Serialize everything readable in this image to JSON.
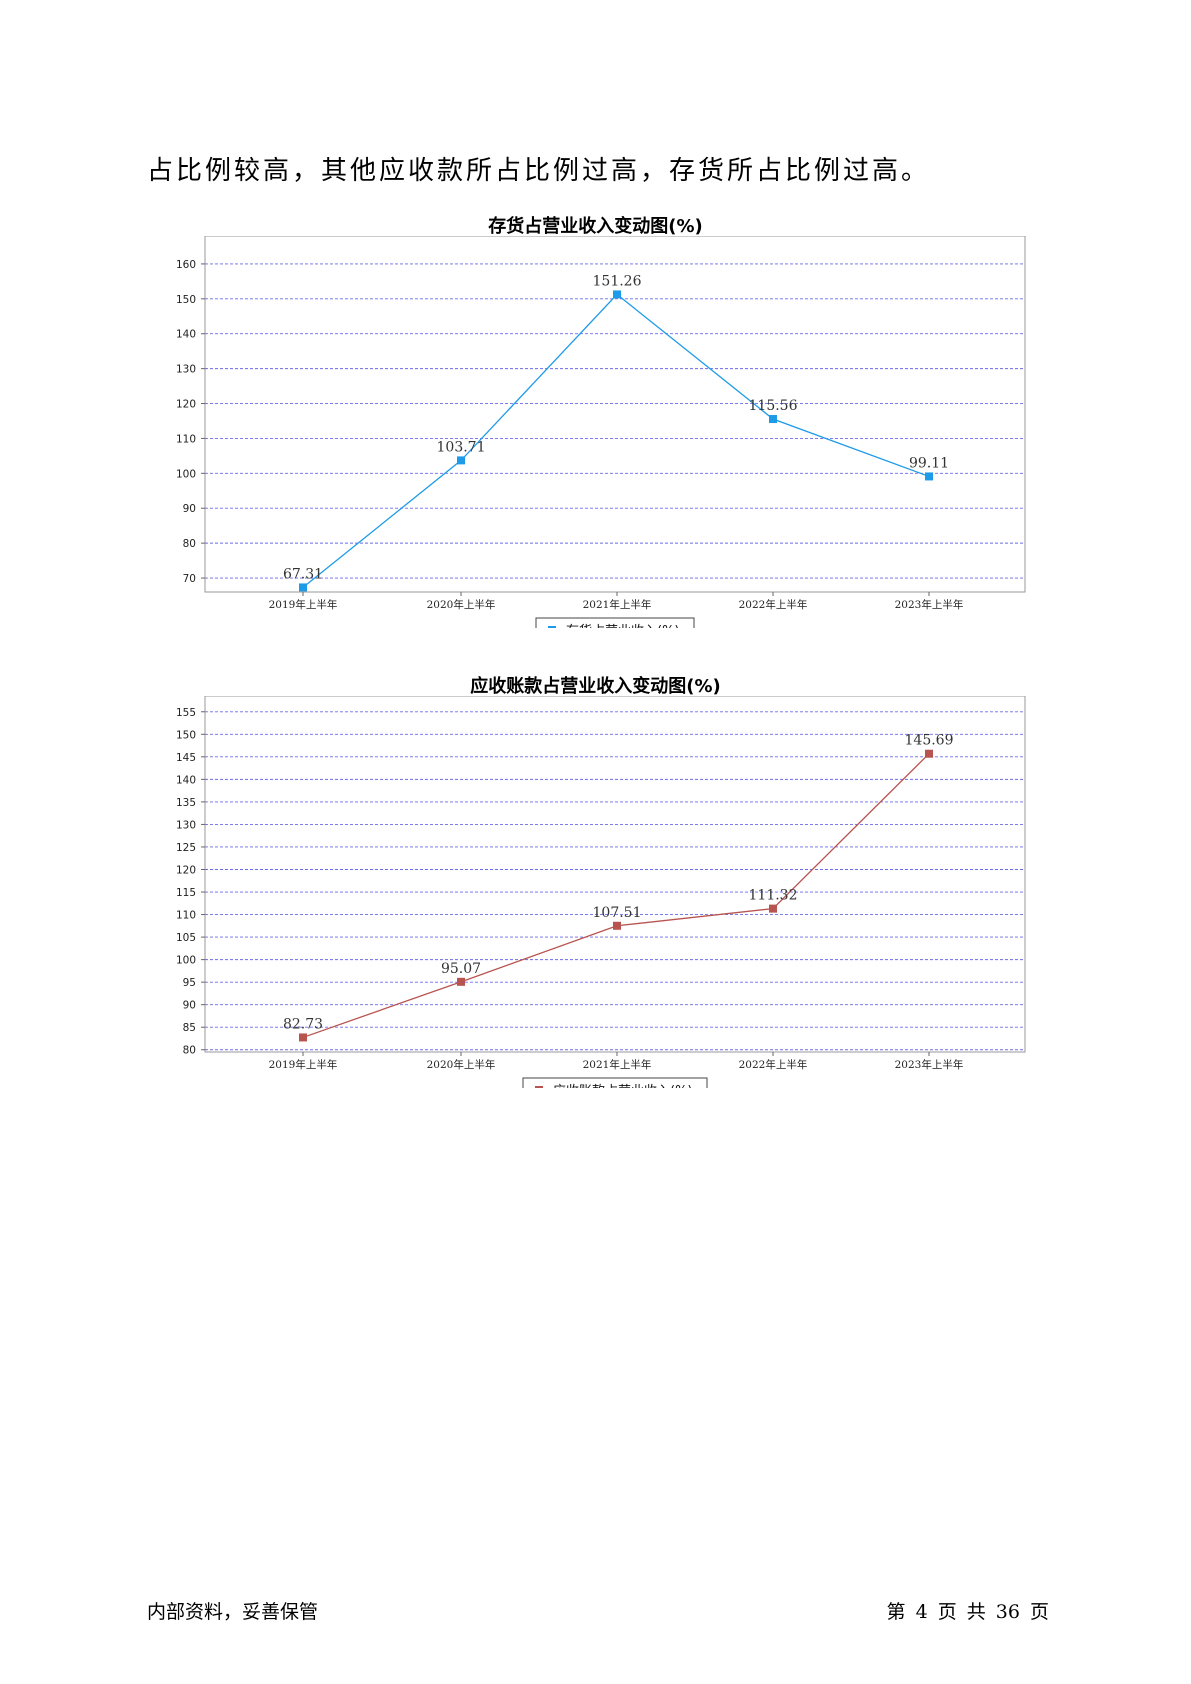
{
  "page": {
    "intro_text": "占比例较高，其他应收款所占比例过高，存货所占比例过高。",
    "footer_left": "内部资料，妥善保管",
    "footer_right": "第 4 页   共 36 页"
  },
  "chart_data": [
    {
      "type": "line",
      "title": "存货占营业收入变动图(%)",
      "categories": [
        "2019年上半年",
        "2020年上半年",
        "2021年上半年",
        "2022年上半年",
        "2023年上半年"
      ],
      "series": [
        {
          "name": "存货占营业收入(%)",
          "values": [
            67.31,
            103.71,
            151.26,
            115.56,
            99.11
          ],
          "color": "#1e9be8"
        }
      ],
      "data_labels": [
        "67.31",
        "103.71",
        "151.26",
        "115.56",
        "99.11"
      ],
      "ylim": [
        66,
        168
      ],
      "yticks": [
        70,
        80,
        90,
        100,
        110,
        120,
        130,
        140,
        150,
        160
      ],
      "grid": true,
      "grid_color": "#6a6aea",
      "legend_position": "bottom-center"
    },
    {
      "type": "line",
      "title": "应收账款占营业收入变动图(%)",
      "categories": [
        "2019年上半年",
        "2020年上半年",
        "2021年上半年",
        "2022年上半年",
        "2023年上半年"
      ],
      "series": [
        {
          "name": "应收账款占营业收入(%)",
          "values": [
            82.73,
            95.07,
            107.51,
            111.32,
            145.69
          ],
          "color": "#b85450"
        }
      ],
      "data_labels": [
        "82.73",
        "95.07",
        "107.51",
        "111.32",
        "145.69"
      ],
      "ylim": [
        79.5,
        158.5
      ],
      "yticks": [
        80,
        85,
        90,
        95,
        100,
        105,
        110,
        115,
        120,
        125,
        130,
        135,
        140,
        145,
        150,
        155
      ],
      "grid": true,
      "grid_color": "#6a6aea",
      "legend_position": "bottom-center"
    }
  ]
}
